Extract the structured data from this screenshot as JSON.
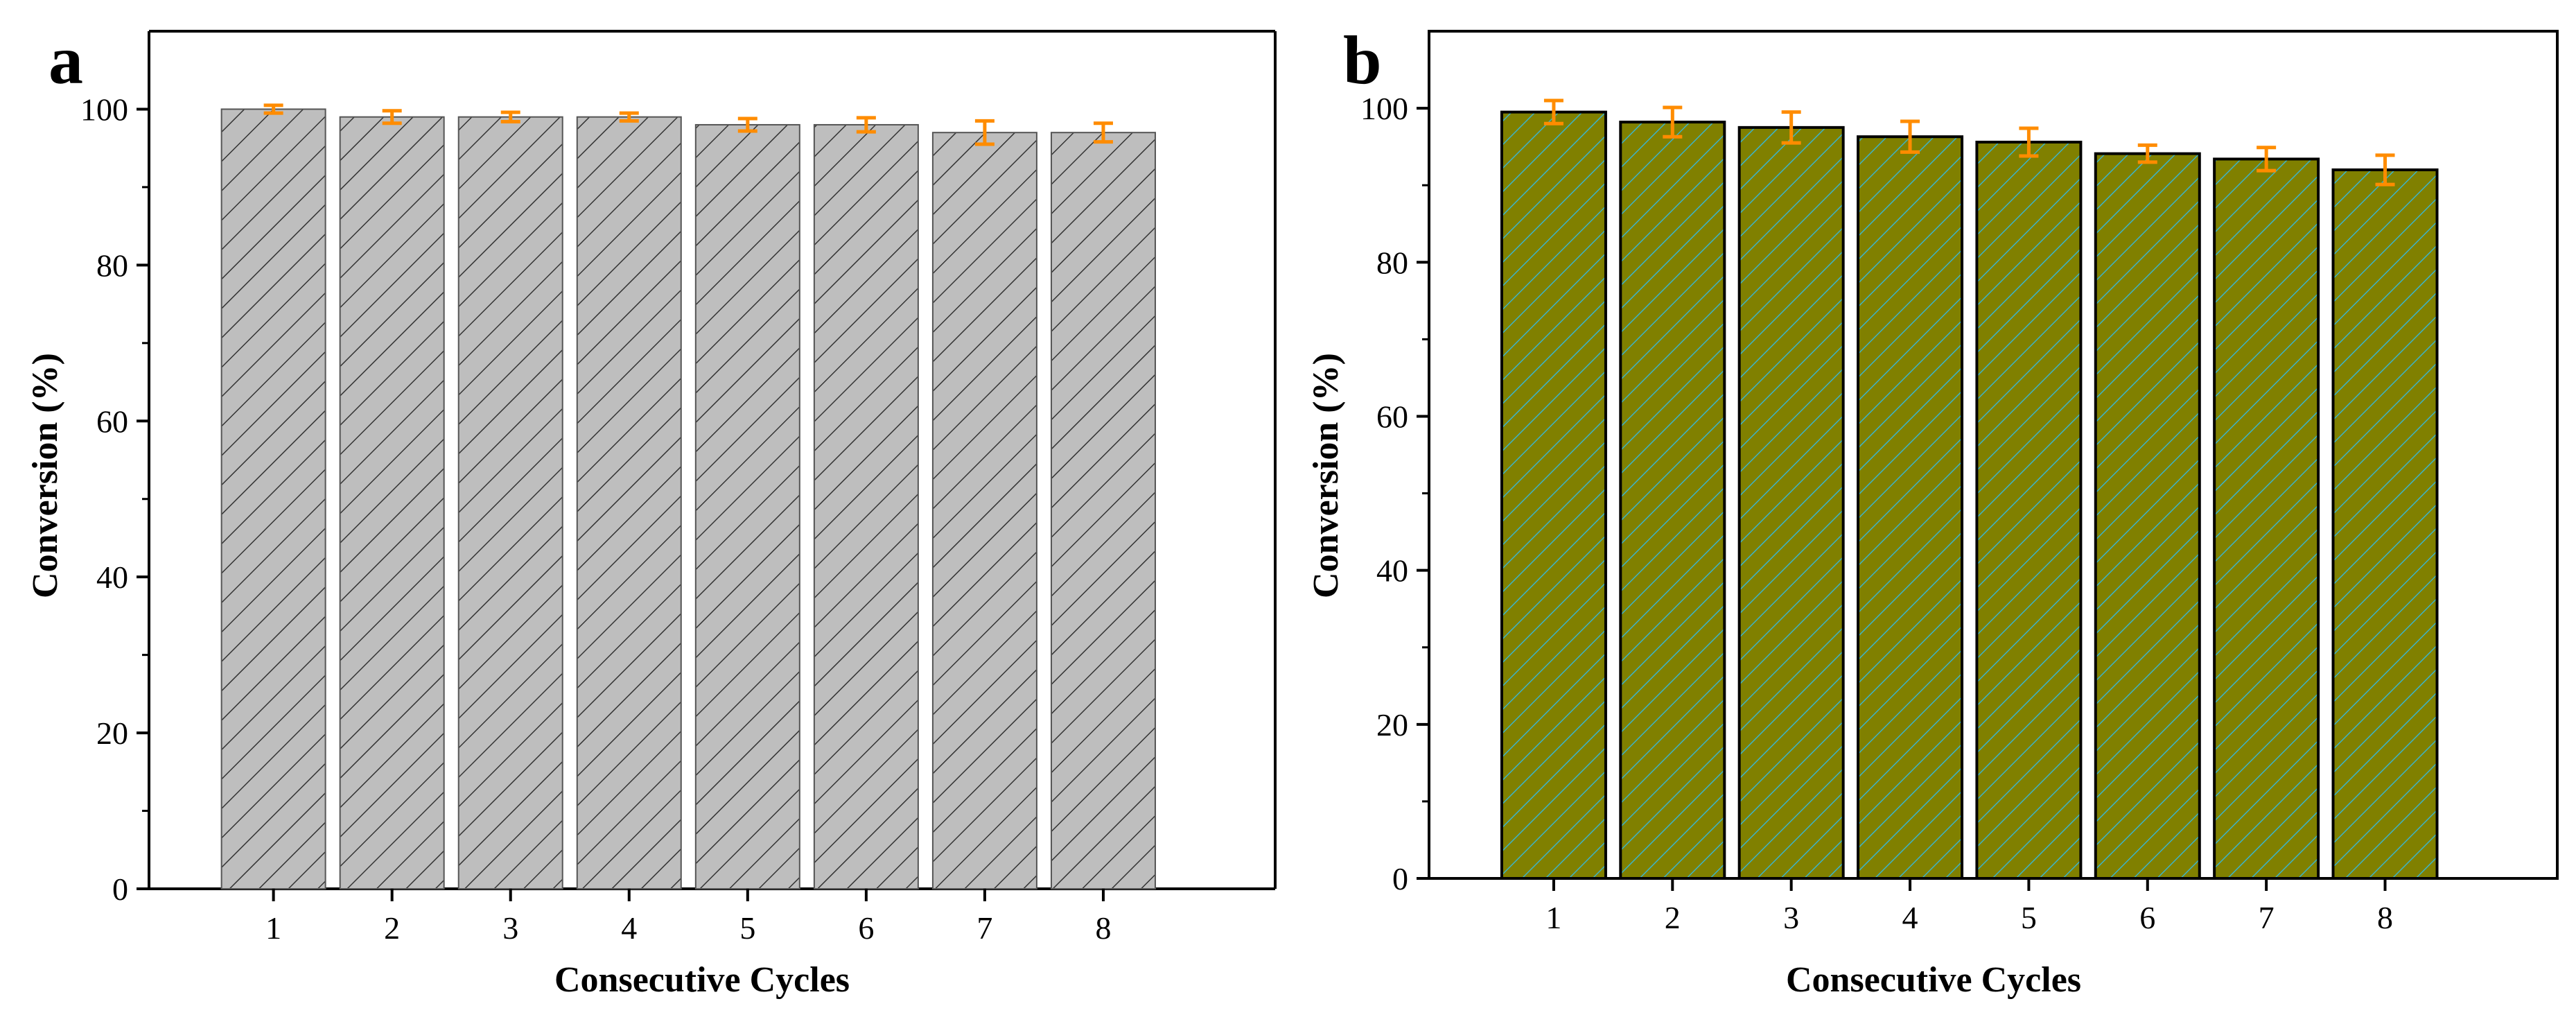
{
  "colors": {
    "panel_a_fill": "#bebebe",
    "panel_a_hatch": "#333333",
    "panel_b_fill": "#808000",
    "panel_b_hatch": "#3cb4c8",
    "error_bar": "#ff8c00",
    "axis": "#000000"
  },
  "chart_data": [
    {
      "panel": "a",
      "type": "bar",
      "xlabel": "Consecutive Cycles",
      "ylabel": "Conversion (%)",
      "categories": [
        "1",
        "2",
        "3",
        "4",
        "5",
        "6",
        "7",
        "8"
      ],
      "values": [
        100,
        99,
        99,
        99,
        98,
        98,
        97,
        97
      ],
      "errors": [
        0.5,
        0.8,
        0.6,
        0.5,
        0.8,
        0.9,
        1.5,
        1.2
      ],
      "ylim": [
        0,
        110
      ],
      "yticks": [
        "0",
        "20",
        "40",
        "60",
        "80",
        "100"
      ],
      "grid": false,
      "legend": "none"
    },
    {
      "panel": "b",
      "type": "bar",
      "xlabel": "Consecutive Cycles",
      "ylabel": "Conversion (%)",
      "categories": [
        "1",
        "2",
        "3",
        "4",
        "5",
        "6",
        "7",
        "8"
      ],
      "values": [
        99.5,
        98.2,
        97.5,
        96.3,
        95.6,
        94.1,
        93.4,
        92.0
      ],
      "errors": [
        1.5,
        1.9,
        2.0,
        2.0,
        1.8,
        1.1,
        1.5,
        1.9
      ],
      "ylim": [
        0,
        110
      ],
      "yticks": [
        "0",
        "20",
        "40",
        "60",
        "80",
        "100"
      ],
      "grid": false,
      "legend": "none"
    }
  ]
}
